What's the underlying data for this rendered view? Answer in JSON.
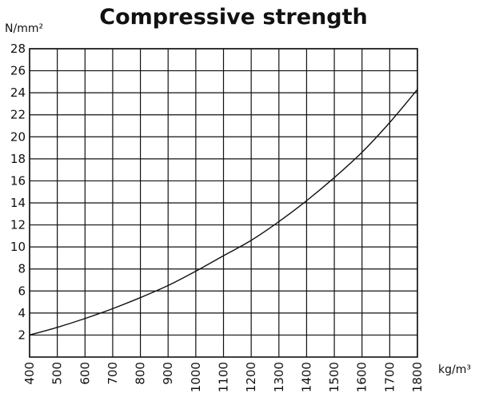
{
  "chart_data": {
    "type": "line",
    "title": "Compressive strength",
    "ylabel": "N/mm²",
    "xlabel": "kg/m³",
    "xlim": [
      400,
      1800
    ],
    "ylim": [
      0,
      28
    ],
    "x_ticks": [
      400,
      500,
      600,
      700,
      800,
      900,
      1000,
      1100,
      1200,
      1300,
      1400,
      1500,
      1600,
      1700,
      1800
    ],
    "y_ticks": [
      2,
      4,
      6,
      8,
      10,
      12,
      14,
      16,
      18,
      20,
      22,
      24,
      26,
      28
    ],
    "grid": true,
    "series": [
      {
        "x": [
          400,
          500,
          600,
          700,
          800,
          900,
          1000,
          1100,
          1200,
          1300,
          1400,
          1500,
          1600,
          1700,
          1800
        ],
        "y": [
          2.0,
          2.7,
          3.5,
          4.4,
          5.4,
          6.5,
          7.8,
          9.2,
          10.6,
          12.3,
          14.2,
          16.3,
          18.6,
          21.3,
          24.3
        ]
      }
    ],
    "colors": {
      "line": "#111111",
      "grid": "#111111",
      "background": "#ffffff"
    }
  }
}
